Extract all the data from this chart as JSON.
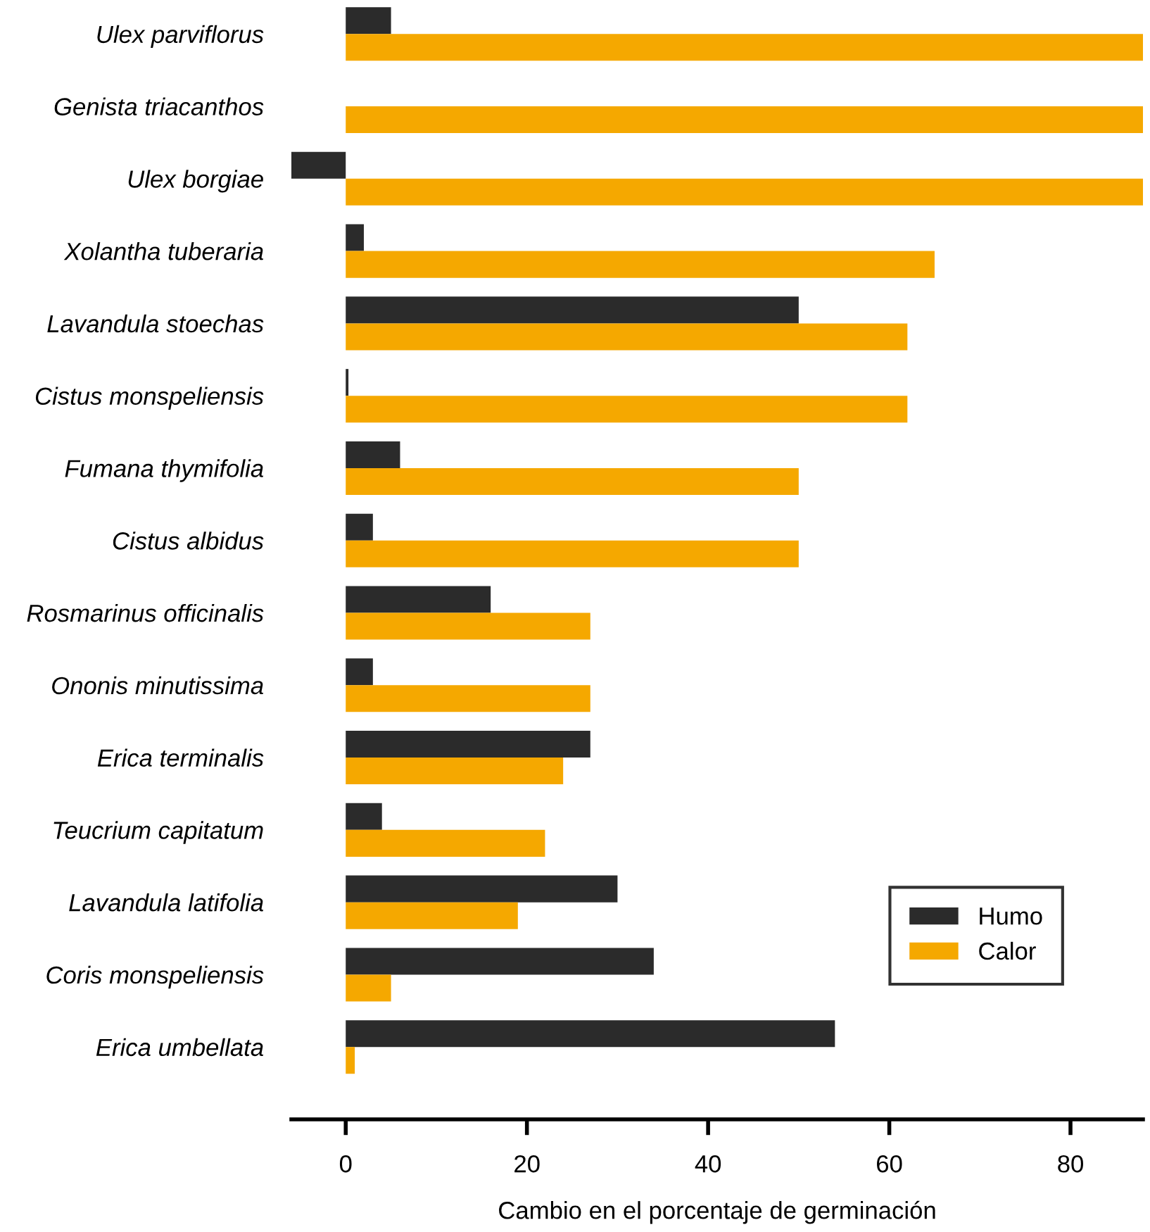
{
  "chart_data": {
    "type": "bar",
    "orientation": "horizontal",
    "categories": [
      "Ulex parviflorus",
      "Genista triacanthos",
      "Ulex borgiae",
      "Xolantha tuberaria",
      "Lavandula stoechas",
      "Cistus monspeliensis",
      "Fumana thymifolia",
      "Cistus albidus",
      "Rosmarinus officinalis",
      "Ononis minutissima",
      "Erica terminalis",
      "Teucrium capitatum",
      "Lavandula latifolia",
      "Coris monspeliensis",
      "Erica umbellata"
    ],
    "series": [
      {
        "name": "Humo",
        "color": "#2b2b2b",
        "values": [
          5,
          null,
          -6,
          2,
          50,
          0.3,
          6,
          3,
          16,
          3,
          27,
          4,
          30,
          34,
          54
        ]
      },
      {
        "name": "Calor",
        "color": "#f5a800",
        "values": [
          88,
          88,
          88,
          65,
          62,
          62,
          50,
          50,
          27,
          27,
          24,
          22,
          19,
          5,
          1
        ]
      }
    ],
    "xlabel": "Cambio en el porcentaje de germinación",
    "xlim": [
      -6,
      88
    ],
    "xticks": [
      0,
      20,
      40,
      60,
      80
    ],
    "legend": "bottom right",
    "grid": false
  }
}
